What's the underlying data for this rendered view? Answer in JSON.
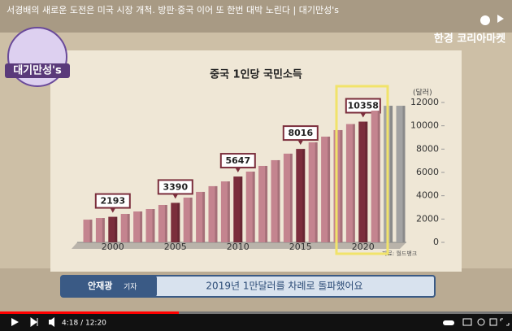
{
  "video": {
    "title": "서경배의 새로운 도전은 미국 시장 개척. 방판·중국 이어 또 한번 대박 노린다 | 대기만성's",
    "time": "4:18 / 12:20"
  },
  "logo": "대기만성's",
  "brand": "한경 코리아마켓",
  "caption": {
    "name": "안재광",
    "role": "기자",
    "text": "2019년 1만달러를 차례로 돌파했어요"
  },
  "chart_data": {
    "type": "bar",
    "title": "중국 1인당 국민소득",
    "y_unit": "(달러)",
    "source": "자료: 월드뱅크",
    "categories": [
      null,
      null,
      "2000",
      null,
      null,
      null,
      null,
      "2005",
      null,
      null,
      null,
      null,
      "2010",
      null,
      null,
      null,
      null,
      "2015",
      null,
      null,
      null,
      null,
      "2020",
      null,
      null,
      null
    ],
    "values": [
      1950,
      2090,
      2193,
      2440,
      2650,
      2860,
      3210,
      3390,
      3840,
      4330,
      4820,
      5230,
      5647,
      6070,
      6560,
      7050,
      7610,
      8016,
      8580,
      9070,
      9630,
      10150,
      10358,
      11300,
      11720,
      11720
    ],
    "value_labels": [
      null,
      null,
      "2193",
      null,
      null,
      null,
      null,
      "3390",
      null,
      null,
      null,
      null,
      "5647",
      null,
      null,
      null,
      null,
      "8016",
      null,
      null,
      null,
      null,
      "10358",
      null,
      null,
      null
    ],
    "colors": [
      "#c4848f",
      "#c4848f",
      "#7b2e3c",
      "#c4848f",
      "#c4848f",
      "#c4848f",
      "#c4848f",
      "#7b2e3c",
      "#c4848f",
      "#c4848f",
      "#c4848f",
      "#c4848f",
      "#7b2e3c",
      "#c4848f",
      "#c4848f",
      "#c4848f",
      "#c4848f",
      "#7b2e3c",
      "#c4848f",
      "#c4848f",
      "#c4848f",
      "#c4848f",
      "#7b2e3c",
      "#c4848f",
      "#a3a3a3",
      "#a3a3a3"
    ],
    "ylim": [
      0,
      12000
    ],
    "yticks": [
      0,
      2000,
      4000,
      6000,
      8000,
      10000,
      12000
    ]
  }
}
